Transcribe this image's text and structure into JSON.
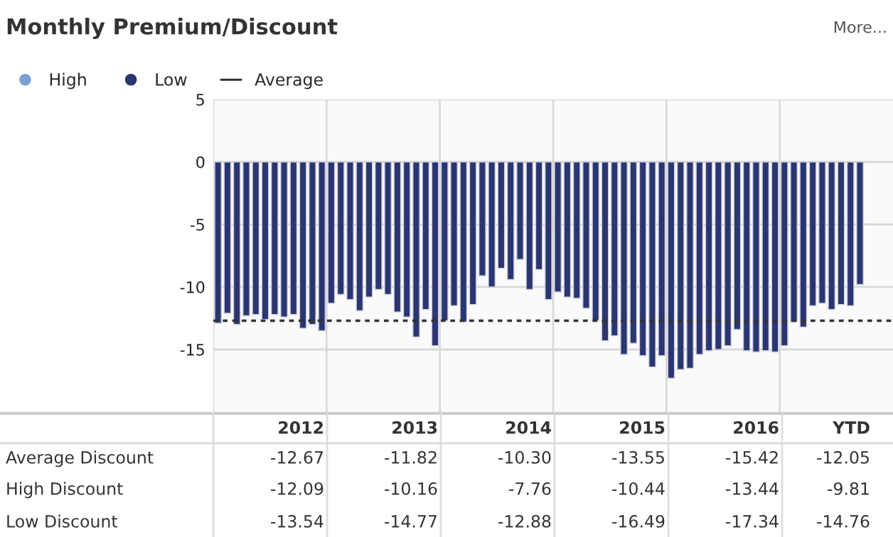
{
  "chart_data": {
    "type": "bar",
    "title": "Monthly Premium/Discount",
    "categories": [
      null,
      null,
      null,
      null,
      null,
      null,
      null,
      null,
      null,
      null,
      null,
      null,
      null,
      null,
      null,
      null,
      null,
      null,
      null,
      null,
      null,
      null,
      null,
      null,
      null,
      null,
      null,
      null,
      null,
      null,
      null,
      null,
      null,
      null,
      null,
      null,
      null,
      null,
      null,
      null,
      null,
      null,
      null,
      null,
      null,
      null,
      null,
      null,
      null,
      null,
      null,
      null,
      null,
      null,
      null,
      null,
      null,
      null,
      null,
      null,
      null,
      null,
      null,
      null,
      null,
      null,
      null,
      null,
      null,
      null,
      null,
      null
    ],
    "series": [
      {
        "name": "High",
        "color": "#7f9fd3",
        "values": [
          null,
          null,
          null,
          null,
          null,
          null,
          null,
          null,
          null,
          null,
          null,
          null,
          null,
          null,
          null,
          null,
          null,
          null,
          null,
          null,
          null,
          null,
          null,
          null,
          null,
          null,
          null,
          null,
          null,
          null,
          null,
          null,
          null,
          null,
          null,
          null,
          null,
          null,
          null,
          null,
          null,
          null,
          null,
          null,
          null,
          null,
          null,
          null,
          null,
          null,
          null,
          null,
          null,
          null,
          null,
          null,
          null,
          null,
          null,
          null,
          null,
          null,
          null,
          null,
          null,
          null,
          null,
          null,
          null,
          null,
          null,
          null
        ]
      },
      {
        "name": "Low",
        "color": "#2b3570",
        "values": [
          -12.9,
          -12.1,
          -13.0,
          -12.3,
          -12.2,
          -12.6,
          -12.2,
          -12.4,
          -12.2,
          -13.3,
          -13.0,
          -13.5,
          -11.3,
          -10.6,
          -11.0,
          -11.9,
          -10.8,
          -10.2,
          -10.6,
          -12.0,
          -12.4,
          -14.0,
          -11.8,
          -14.7,
          -12.7,
          -11.5,
          -12.8,
          -11.4,
          -9.1,
          -10.0,
          -8.5,
          -9.4,
          -7.8,
          -10.2,
          -8.6,
          -11.0,
          -10.4,
          -10.8,
          -10.9,
          -11.7,
          -12.7,
          -14.3,
          -13.9,
          -15.4,
          -14.5,
          -15.5,
          -16.4,
          -15.5,
          -17.3,
          -16.6,
          -16.5,
          -15.4,
          -15.1,
          -15.0,
          -14.7,
          -13.4,
          -15.1,
          -15.2,
          -15.1,
          -15.2,
          -14.7,
          -12.8,
          -13.2,
          -11.5,
          -11.3,
          -11.8,
          -11.4,
          -11.5,
          -9.8,
          null,
          null,
          null
        ]
      }
    ],
    "ylim": [
      -20,
      5
    ],
    "yticks": [
      -15,
      -10,
      -5,
      0,
      5
    ],
    "grid": true,
    "legend": "top left",
    "ref_lines": [
      {
        "axis": "y",
        "value": -12.7,
        "label": "Average",
        "color": "#333333",
        "line_style": "dashed"
      }
    ],
    "annotations": [
      "More...",
      "2012",
      "2013",
      "2014",
      "2015",
      "2016",
      "YTD",
      "Average Discount",
      "-12.67",
      "-11.82",
      "-10.30",
      "-13.55",
      "-15.42",
      "-12.05",
      "High Discount",
      "-12.09",
      "-10.16",
      "-7.76",
      "-10.44",
      "-13.44",
      "-9.81",
      "Low Discount",
      "-13.54",
      "-14.77",
      "-12.88",
      "-16.49",
      "-17.34",
      "-14.76"
    ]
  }
}
